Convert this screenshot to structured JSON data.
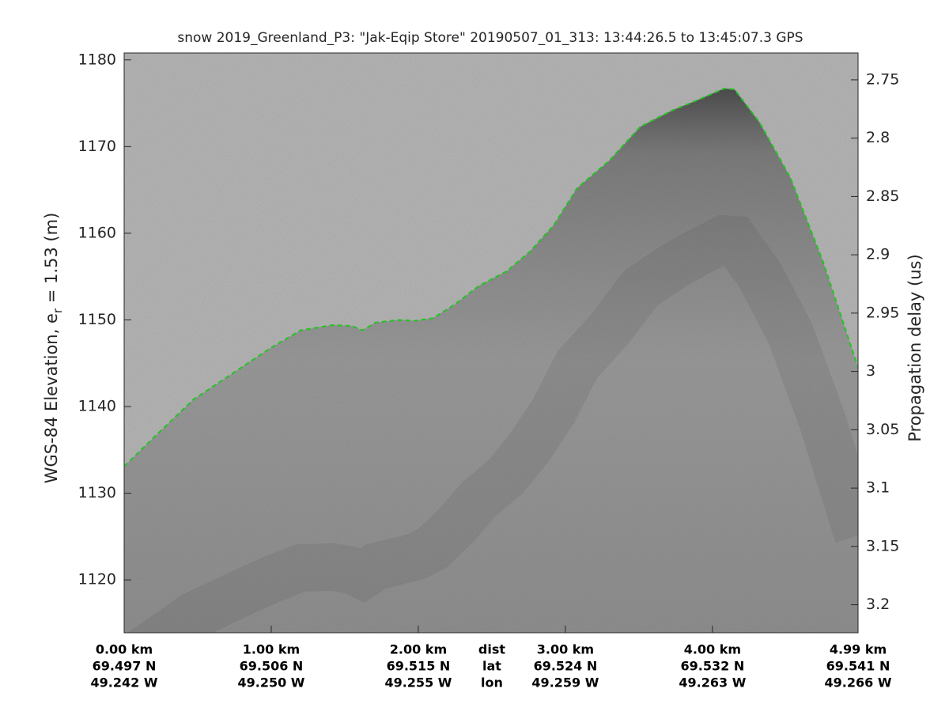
{
  "chart_data": {
    "type": "echogram",
    "title": "snow 2019_Greenland_P3: \"Jak-Eqip Store\"  20190507_01_313: 13:44:26.5 to 13:45:07.3 GPS",
    "ylabel_parts": [
      "WGS-84 Elevation, e",
      "r",
      " = 1.53 (m)"
    ],
    "y2label": "Propagation delay (us)",
    "xlim": [
      0,
      4.99
    ],
    "xticks": [
      {
        "value": 0,
        "label": "0.00 km"
      },
      {
        "value": 1,
        "label": "1.00 km"
      },
      {
        "value": 2,
        "label": "2.00 km"
      },
      {
        "value": 3,
        "label": "3.00 km"
      },
      {
        "value": 4,
        "label": "4.00 km"
      },
      {
        "value": 4.99,
        "label": "4.99 km"
      }
    ],
    "xtick_lat": [
      "69.497 N",
      "69.506 N",
      "69.515 N",
      "69.524 N",
      "69.532 N",
      "69.541 N"
    ],
    "xtick_lon": [
      "49.242 W",
      "49.250 W",
      "49.255 W",
      "49.259 W",
      "49.263 W",
      "49.266 W"
    ],
    "x_row_names": [
      "dist",
      "lat",
      "lon"
    ],
    "ylim": [
      1113.9,
      1180.8
    ],
    "yticks": [
      1120,
      1130,
      1140,
      1150,
      1160,
      1170,
      1180
    ],
    "y2lim": [
      3.224,
      2.727
    ],
    "y2ticks": [
      2.75,
      2.8,
      2.85,
      2.9,
      2.95,
      3,
      3.05,
      3.1,
      3.15,
      3.2
    ],
    "series": [
      {
        "name": "surface",
        "color": "#22cc22",
        "x": [
          0,
          0.23,
          0.47,
          0.77,
          1.0,
          1.2,
          1.42,
          1.55,
          1.62,
          1.71,
          1.87,
          1.98,
          2.1,
          2.25,
          2.41,
          2.6,
          2.76,
          2.92,
          3.08,
          3.3,
          3.51,
          3.73,
          3.89,
          4.08,
          4.15,
          4.32,
          4.53,
          4.75,
          4.99
        ],
        "values": [
          1133.1,
          1136.9,
          1140.8,
          1144.2,
          1146.8,
          1148.8,
          1149.4,
          1149.3,
          1148.8,
          1149.7,
          1150.0,
          1149.9,
          1150.2,
          1151.8,
          1153.9,
          1155.6,
          1157.9,
          1160.9,
          1165.2,
          1168.4,
          1172.3,
          1174.2,
          1175.3,
          1176.7,
          1176.6,
          1172.8,
          1166.4,
          1156.8,
          1144.5
        ]
      }
    ]
  }
}
